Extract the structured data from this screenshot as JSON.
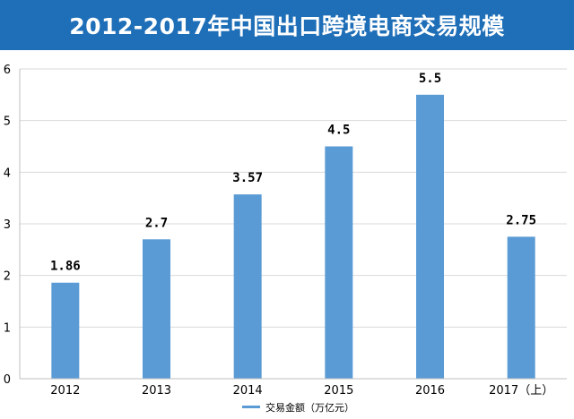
{
  "title": "2012-2017年中国出口跨境电商交易规模",
  "colors": {
    "header": "#1f6fb8",
    "bar": "#5b9bd5",
    "grid": "#d9d9d9"
  },
  "chart_data": {
    "type": "bar",
    "categories": [
      "2012",
      "2013",
      "2014",
      "2015",
      "2016",
      "2017（上）"
    ],
    "series": [
      {
        "name": "交易金额（万亿元）",
        "values": [
          1.86,
          2.7,
          3.57,
          4.5,
          5.5,
          2.75
        ]
      }
    ],
    "data_labels": [
      "1.86",
      "2.7",
      "3.57",
      "4.5",
      "5.5",
      "2.75"
    ],
    "ylim": [
      0,
      6
    ],
    "yticks": [
      0,
      1,
      2,
      3,
      4,
      5,
      6
    ],
    "grid": true,
    "legend_position": "bottom"
  }
}
